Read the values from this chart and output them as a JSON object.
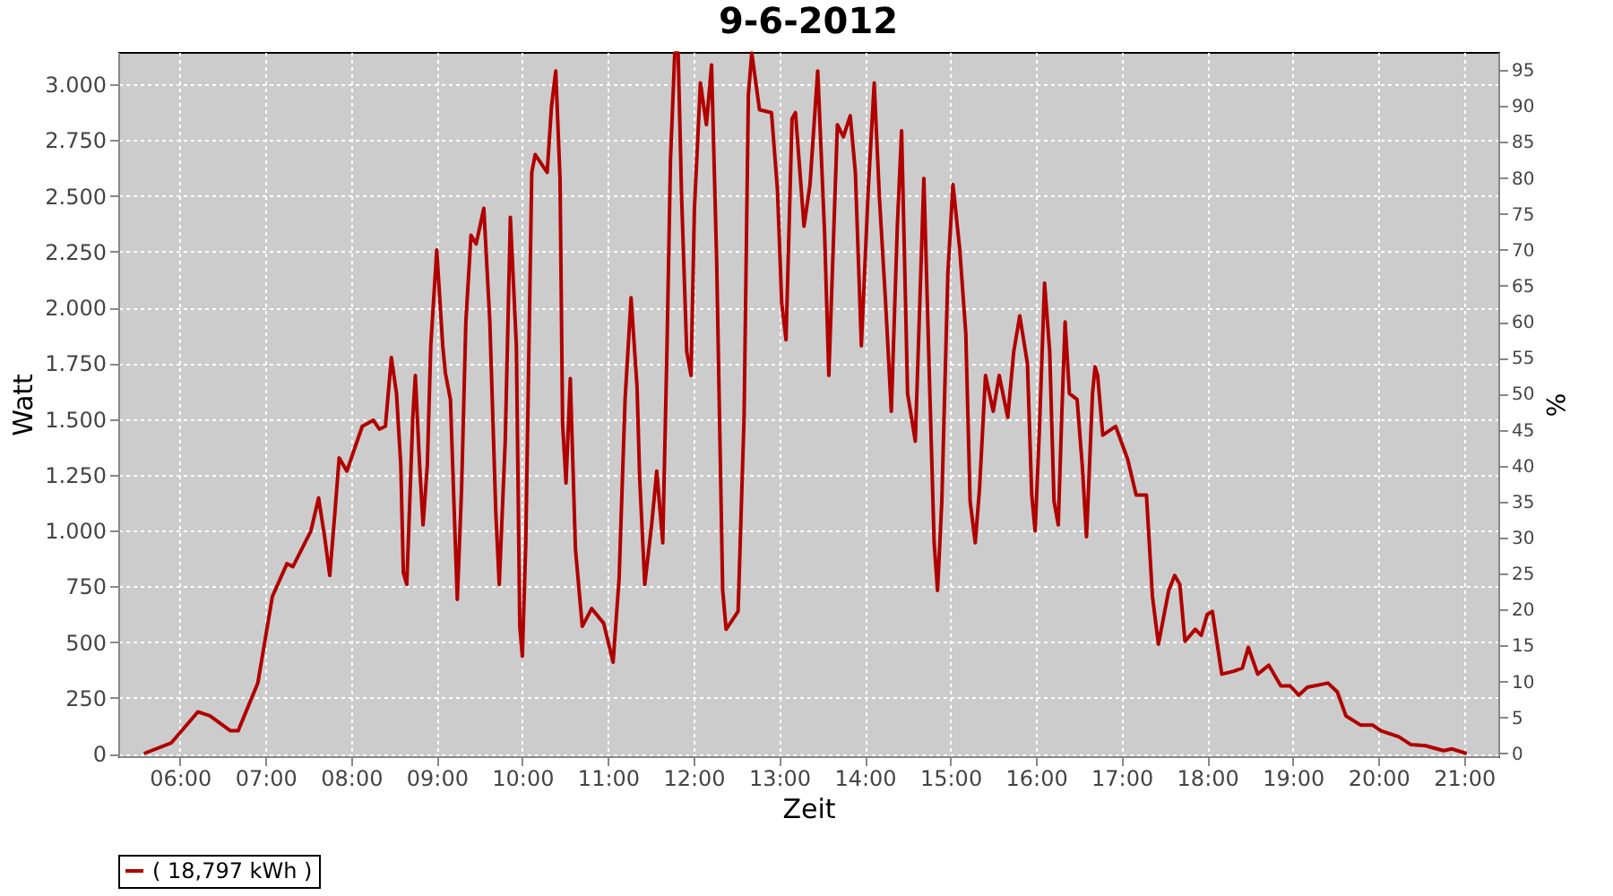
{
  "chart_data": {
    "type": "line",
    "title": "9-6-2012",
    "xlabel": "Zeit",
    "ylabel": "Watt",
    "y2label": "%",
    "x": [
      5.58,
      5.9,
      6.21,
      6.35,
      6.59,
      6.68,
      6.91,
      7.08,
      7.25,
      7.32,
      7.53,
      7.62,
      7.69,
      7.75,
      7.81,
      7.86,
      7.95,
      8.13,
      8.26,
      8.33,
      8.4,
      8.47,
      8.53,
      8.58,
      8.61,
      8.65,
      8.72,
      8.75,
      8.8,
      8.84,
      8.89,
      8.93,
      9.0,
      9.07,
      9.1,
      9.16,
      9.2,
      9.24,
      9.29,
      9.34,
      9.4,
      9.46,
      9.55,
      9.62,
      9.69,
      9.73,
      9.8,
      9.86,
      9.93,
      9.97,
      10.0,
      10.04,
      10.11,
      10.15,
      10.29,
      10.34,
      10.39,
      10.44,
      10.47,
      10.51,
      10.56,
      10.62,
      10.7,
      10.81,
      10.95,
      11.06,
      11.13,
      11.2,
      11.27,
      11.34,
      11.37,
      11.43,
      11.51,
      11.57,
      11.64,
      11.69,
      11.73,
      11.78,
      11.82,
      11.86,
      11.92,
      11.97,
      12.01,
      12.08,
      12.15,
      12.21,
      12.27,
      12.34,
      12.38,
      12.52,
      12.59,
      12.64,
      12.68,
      12.77,
      12.91,
      12.98,
      13.03,
      13.08,
      13.15,
      13.19,
      13.29,
      13.36,
      13.45,
      13.53,
      13.58,
      13.68,
      13.75,
      13.83,
      13.89,
      13.96,
      14.04,
      14.11,
      14.17,
      14.24,
      14.31,
      14.38,
      14.43,
      14.5,
      14.59,
      14.69,
      14.76,
      14.81,
      14.85,
      14.9,
      14.97,
      15.03,
      15.11,
      15.18,
      15.23,
      15.29,
      15.34,
      15.41,
      15.5,
      15.57,
      15.67,
      15.74,
      15.81,
      15.9,
      15.95,
      15.99,
      16.04,
      16.1,
      16.16,
      16.21,
      16.26,
      16.3,
      16.34,
      16.39,
      16.48,
      16.54,
      16.59,
      16.66,
      16.69,
      16.72,
      16.78,
      16.93,
      17.07,
      17.17,
      17.29,
      17.36,
      17.43,
      17.55,
      17.62,
      17.68,
      17.74,
      17.86,
      17.93,
      18.0,
      18.06,
      18.17,
      18.31,
      18.41,
      18.48,
      18.59,
      18.72,
      18.86,
      18.97,
      19.07,
      19.17,
      19.41,
      19.52,
      19.62,
      19.79,
      19.93,
      20.03,
      20.24,
      20.38,
      20.55,
      20.76,
      20.86,
      21.03
    ],
    "series": [
      {
        "name": "( 18,797 kWh )",
        "color": "#b00000",
        "values": [
          0,
          48,
          187,
          169,
          102,
          102,
          316,
          704,
          851,
          838,
          998,
          1146,
          972,
          798,
          1079,
          1325,
          1266,
          1467,
          1494,
          1454,
          1467,
          1775,
          1614,
          1293,
          811,
          758,
          1507,
          1695,
          1293,
          1025,
          1293,
          1828,
          2257,
          1828,
          1708,
          1587,
          1132,
          691,
          1186,
          1935,
          2324,
          2284,
          2444,
          1935,
          1079,
          758,
          1400,
          2404,
          1828,
          570,
          436,
          945,
          2605,
          2685,
          2605,
          2899,
          3060,
          2578,
          1480,
          1213,
          1681,
          918,
          570,
          650,
          584,
          410,
          784,
          1587,
          2043,
          1641,
          1239,
          758,
          1025,
          1266,
          945,
          1828,
          2658,
          3140,
          3140,
          2498,
          1802,
          1695,
          2444,
          3006,
          2819,
          3087,
          2203,
          731,
          557,
          637,
          1507,
          2953,
          3140,
          2886,
          2873,
          2525,
          2016,
          1855,
          2846,
          2873,
          2364,
          2551,
          3060,
          2337,
          1695,
          2819,
          2765,
          2859,
          2605,
          1828,
          2525,
          3006,
          2498,
          2043,
          1534,
          2364,
          2792,
          1614,
          1400,
          2578,
          1614,
          945,
          731,
          1132,
          2150,
          2551,
          2257,
          1882,
          1132,
          945,
          1186,
          1695,
          1534,
          1695,
          1507,
          1802,
          1962,
          1748,
          1159,
          998,
          1454,
          2109,
          1802,
          1132,
          1025,
          1507,
          1935,
          1614,
          1587,
          1293,
          972,
          1614,
          1734,
          1695,
          1427,
          1467,
          1320,
          1159,
          1159,
          704,
          490,
          731,
          798,
          758,
          503,
          557,
          530,
          624,
          637,
          356,
          369,
          383,
          476,
          356,
          396,
          303,
          303,
          262,
          297,
          316,
          276,
          169,
          128,
          128,
          102,
          75,
          40,
          35,
          13,
          21,
          0
        ]
      }
    ],
    "xlim": [
      5.28,
      21.4
    ],
    "xticks": [
      {
        "value": 6,
        "label": "06:00"
      },
      {
        "value": 7,
        "label": "07:00"
      },
      {
        "value": 8,
        "label": "08:00"
      },
      {
        "value": 9,
        "label": "09:00"
      },
      {
        "value": 10,
        "label": "10:00"
      },
      {
        "value": 11,
        "label": "11:00"
      },
      {
        "value": 12,
        "label": "12:00"
      },
      {
        "value": 13,
        "label": "13:00"
      },
      {
        "value": 14,
        "label": "14:00"
      },
      {
        "value": 15,
        "label": "15:00"
      },
      {
        "value": 16,
        "label": "16:00"
      },
      {
        "value": 17,
        "label": "17:00"
      },
      {
        "value": 18,
        "label": "18:00"
      },
      {
        "value": 19,
        "label": "19:00"
      },
      {
        "value": 20,
        "label": "20:00"
      },
      {
        "value": 21,
        "label": "21:00"
      }
    ],
    "ylim": [
      -12,
      3145
    ],
    "yticks": [
      0,
      250,
      500,
      750,
      {
        "value": 1000,
        "label": "1.000"
      },
      {
        "value": 1250,
        "label": "1.250"
      },
      {
        "value": 1500,
        "label": "1.500"
      },
      {
        "value": 1750,
        "label": "1.750"
      },
      {
        "value": 2000,
        "label": "2.000"
      },
      {
        "value": 2250,
        "label": "2.250"
      },
      {
        "value": 2500,
        "label": "2.500"
      },
      {
        "value": 2750,
        "label": "2.750"
      },
      {
        "value": 3000,
        "label": "3.000"
      }
    ],
    "y2lim": [
      -0.4,
      97.5
    ],
    "y2ticks": [
      0,
      5,
      10,
      15,
      20,
      25,
      30,
      35,
      40,
      45,
      50,
      55,
      60,
      65,
      70,
      75,
      80,
      85,
      90,
      95
    ],
    "grid": true,
    "legend": "bottom",
    "line_style": "solid",
    "marker": "none"
  }
}
